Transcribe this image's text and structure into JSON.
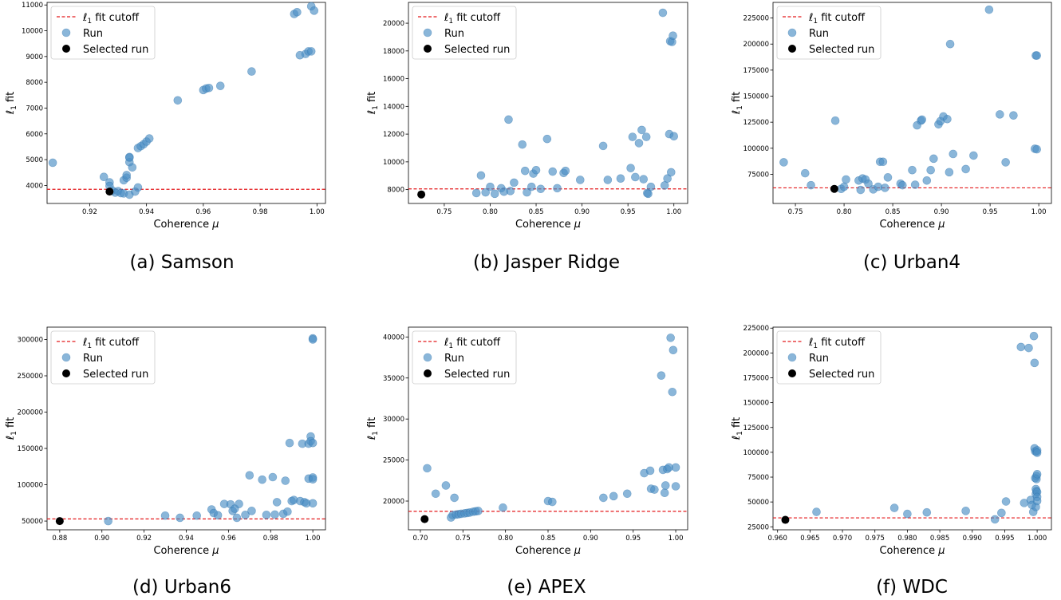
{
  "colors": {
    "run_point": "#4b8fc5",
    "run_point_stroke": "#2f74ad",
    "selected_point": "#000000",
    "cutoff_line": "#e41a1c",
    "axes": "#000000"
  },
  "legend_labels": {
    "cutoff_prefix": "ℓ",
    "cutoff_sub": "1",
    "cutoff_suffix": " fit cutoff",
    "run": "Run",
    "selected": "Selected run"
  },
  "chart_data": [
    {
      "type": "scatter",
      "caption": "(a) Samson",
      "xlabel_main": "Coherence ",
      "xlabel_mu": "μ",
      "ylabel_main": "ℓ",
      "ylabel_sub": "1",
      "ylabel_suffix": " fit",
      "xlim": [
        0.905,
        1.003
      ],
      "ylim": [
        3300,
        11100
      ],
      "xticks": [
        0.92,
        0.94,
        0.96,
        0.98,
        1.0
      ],
      "xtick_labels": [
        "0.92",
        "0.94",
        "0.96",
        "0.98",
        "1.00"
      ],
      "yticks": [
        4000,
        5000,
        6000,
        7000,
        8000,
        9000,
        10000,
        11000
      ],
      "ytick_labels": [
        "4000",
        "5000",
        "6000",
        "7000",
        "8000",
        "9000",
        "10000",
        "11000"
      ],
      "cutoff": 3850,
      "selected": [
        0.927,
        3760
      ],
      "runs": [
        [
          0.907,
          4880
        ],
        [
          0.925,
          4330
        ],
        [
          0.927,
          4120
        ],
        [
          0.927,
          3980
        ],
        [
          0.928,
          3800
        ],
        [
          0.929,
          3720
        ],
        [
          0.93,
          3780
        ],
        [
          0.931,
          3700
        ],
        [
          0.932,
          3690
        ],
        [
          0.932,
          4200
        ],
        [
          0.933,
          4300
        ],
        [
          0.933,
          4400
        ],
        [
          0.934,
          4900
        ],
        [
          0.934,
          5100
        ],
        [
          0.934,
          5080
        ],
        [
          0.935,
          4700
        ],
        [
          0.934,
          3640
        ],
        [
          0.936,
          3760
        ],
        [
          0.937,
          3920
        ],
        [
          0.937,
          5450
        ],
        [
          0.938,
          5520
        ],
        [
          0.939,
          5600
        ],
        [
          0.94,
          5700
        ],
        [
          0.941,
          5820
        ],
        [
          0.951,
          7300
        ],
        [
          0.96,
          7700
        ],
        [
          0.961,
          7760
        ],
        [
          0.962,
          7780
        ],
        [
          0.966,
          7860
        ],
        [
          0.977,
          8420
        ],
        [
          0.992,
          10650
        ],
        [
          0.993,
          10720
        ],
        [
          0.994,
          9050
        ],
        [
          0.996,
          9100
        ],
        [
          0.997,
          9200
        ],
        [
          0.998,
          9200
        ],
        [
          0.998,
          10950
        ],
        [
          0.999,
          10780
        ]
      ]
    },
    {
      "type": "scatter",
      "caption": "(b) Jasper Ridge",
      "xlabel_main": "Coherence ",
      "xlabel_mu": "μ",
      "ylabel_main": "ℓ",
      "ylabel_sub": "1",
      "ylabel_suffix": " fit",
      "xlim": [
        0.711,
        1.015
      ],
      "ylim": [
        7000,
        21500
      ],
      "xticks": [
        0.75,
        0.8,
        0.85,
        0.9,
        0.95,
        1.0
      ],
      "xtick_labels": [
        "0.75",
        "0.80",
        "0.85",
        "0.90",
        "0.95",
        "1.00"
      ],
      "yticks": [
        8000,
        10000,
        12000,
        14000,
        16000,
        18000,
        20000
      ],
      "ytick_labels": [
        "8000",
        "10000",
        "12000",
        "14000",
        "16000",
        "18000",
        "20000"
      ],
      "cutoff": 8050,
      "selected": [
        0.725,
        7650
      ],
      "runs": [
        [
          0.785,
          7750
        ],
        [
          0.79,
          9020
        ],
        [
          0.795,
          7800
        ],
        [
          0.8,
          8200
        ],
        [
          0.805,
          7700
        ],
        [
          0.812,
          8100
        ],
        [
          0.815,
          7850
        ],
        [
          0.82,
          13050
        ],
        [
          0.822,
          7900
        ],
        [
          0.826,
          8500
        ],
        [
          0.835,
          11250
        ],
        [
          0.838,
          9350
        ],
        [
          0.84,
          7800
        ],
        [
          0.845,
          8200
        ],
        [
          0.847,
          9150
        ],
        [
          0.85,
          9400
        ],
        [
          0.855,
          8050
        ],
        [
          0.862,
          11650
        ],
        [
          0.868,
          9300
        ],
        [
          0.873,
          8100
        ],
        [
          0.88,
          9200
        ],
        [
          0.882,
          9350
        ],
        [
          0.898,
          8700
        ],
        [
          0.923,
          11150
        ],
        [
          0.928,
          8700
        ],
        [
          0.942,
          8800
        ],
        [
          0.953,
          9550
        ],
        [
          0.955,
          11800
        ],
        [
          0.958,
          8900
        ],
        [
          0.962,
          11350
        ],
        [
          0.965,
          12300
        ],
        [
          0.967,
          8750
        ],
        [
          0.97,
          11800
        ],
        [
          0.971,
          7750
        ],
        [
          0.972,
          7700
        ],
        [
          0.975,
          8200
        ],
        [
          0.988,
          20750
        ],
        [
          0.99,
          8300
        ],
        [
          0.993,
          8800
        ],
        [
          0.995,
          12000
        ],
        [
          0.996,
          18700
        ],
        [
          0.997,
          9250
        ],
        [
          0.998,
          18650
        ],
        [
          0.999,
          19100
        ],
        [
          1.0,
          11850
        ]
      ]
    },
    {
      "type": "scatter",
      "caption": "(c) Urban4",
      "xlabel_main": "Coherence ",
      "xlabel_mu": "μ",
      "ylabel_main": "ℓ",
      "ylabel_sub": "1",
      "ylabel_suffix": " fit",
      "xlim": [
        0.727,
        1.013
      ],
      "ylim": [
        47000,
        240000
      ],
      "xticks": [
        0.75,
        0.8,
        0.85,
        0.9,
        0.95,
        1.0
      ],
      "xtick_labels": [
        "0.75",
        "0.80",
        "0.85",
        "0.90",
        "0.95",
        "1.00"
      ],
      "yticks": [
        75000,
        100000,
        125000,
        150000,
        175000,
        200000,
        225000
      ],
      "ytick_labels": [
        "75000",
        "100000",
        "125000",
        "150000",
        "175000",
        "200000",
        "225000"
      ],
      "cutoff": 62000,
      "selected": [
        0.79,
        61000
      ],
      "runs": [
        [
          0.738,
          86500
        ],
        [
          0.76,
          76000
        ],
        [
          0.766,
          64500
        ],
        [
          0.791,
          126500
        ],
        [
          0.797,
          61000
        ],
        [
          0.8,
          63000
        ],
        [
          0.802,
          70000
        ],
        [
          0.815,
          69000
        ],
        [
          0.817,
          60000
        ],
        [
          0.819,
          71000
        ],
        [
          0.822,
          70000
        ],
        [
          0.825,
          66000
        ],
        [
          0.83,
          60500
        ],
        [
          0.835,
          63000
        ],
        [
          0.837,
          87000
        ],
        [
          0.84,
          87000
        ],
        [
          0.842,
          62000
        ],
        [
          0.845,
          72000
        ],
        [
          0.858,
          66000
        ],
        [
          0.86,
          64500
        ],
        [
          0.87,
          79000
        ],
        [
          0.873,
          65000
        ],
        [
          0.875,
          122000
        ],
        [
          0.879,
          126500
        ],
        [
          0.88,
          127500
        ],
        [
          0.885,
          69000
        ],
        [
          0.889,
          79000
        ],
        [
          0.892,
          90000
        ],
        [
          0.897,
          123000
        ],
        [
          0.899,
          126000
        ],
        [
          0.902,
          130500
        ],
        [
          0.906,
          128000
        ],
        [
          0.908,
          77000
        ],
        [
          0.909,
          200000
        ],
        [
          0.912,
          94500
        ],
        [
          0.925,
          80000
        ],
        [
          0.933,
          93000
        ],
        [
          0.949,
          233000
        ],
        [
          0.96,
          132500
        ],
        [
          0.966,
          86500
        ],
        [
          0.974,
          131500
        ],
        [
          0.996,
          99500
        ],
        [
          0.997,
          189000
        ],
        [
          0.998,
          189000
        ],
        [
          0.998,
          99000
        ]
      ]
    },
    {
      "type": "scatter",
      "caption": "(d) Urban6",
      "xlabel_main": "Coherence ",
      "xlabel_mu": "μ",
      "ylabel_main": "ℓ",
      "ylabel_sub": "1",
      "ylabel_suffix": " fit",
      "xlim": [
        0.874,
        1.006
      ],
      "ylim": [
        38000,
        317000
      ],
      "xticks": [
        0.88,
        0.9,
        0.92,
        0.94,
        0.96,
        0.98,
        1.0
      ],
      "xtick_labels": [
        "0.88",
        "0.90",
        "0.92",
        "0.94",
        "0.96",
        "0.98",
        "1.00"
      ],
      "yticks": [
        50000,
        100000,
        150000,
        200000,
        250000,
        300000
      ],
      "ytick_labels": [
        "50000",
        "100000",
        "150000",
        "200000",
        "250000",
        "300000"
      ],
      "cutoff": 53000,
      "selected": [
        0.88,
        50000
      ],
      "runs": [
        [
          0.903,
          50000
        ],
        [
          0.93,
          57500
        ],
        [
          0.937,
          54500
        ],
        [
          0.945,
          57500
        ],
        [
          0.952,
          66000
        ],
        [
          0.953,
          61000
        ],
        [
          0.955,
          58000
        ],
        [
          0.958,
          73500
        ],
        [
          0.961,
          73000
        ],
        [
          0.962,
          64000
        ],
        [
          0.963,
          67000
        ],
        [
          0.964,
          54500
        ],
        [
          0.965,
          73500
        ],
        [
          0.968,
          58500
        ],
        [
          0.97,
          113000
        ],
        [
          0.971,
          64000
        ],
        [
          0.976,
          107000
        ],
        [
          0.978,
          58500
        ],
        [
          0.981,
          110500
        ],
        [
          0.982,
          59000
        ],
        [
          0.983,
          76000
        ],
        [
          0.986,
          60000
        ],
        [
          0.987,
          105500
        ],
        [
          0.988,
          63000
        ],
        [
          0.989,
          157500
        ],
        [
          0.99,
          77500
        ],
        [
          0.991,
          79000
        ],
        [
          0.994,
          77500
        ],
        [
          0.995,
          156500
        ],
        [
          0.996,
          76000
        ],
        [
          0.997,
          74500
        ],
        [
          0.998,
          108500
        ],
        [
          0.998,
          156500
        ],
        [
          0.999,
          166500
        ],
        [
          0.999,
          160000
        ],
        [
          1.0,
          157500
        ],
        [
          1.0,
          301500
        ],
        [
          1.0,
          300000
        ],
        [
          1.0,
          110000
        ],
        [
          1.0,
          107500
        ],
        [
          1.0,
          74500
        ]
      ]
    },
    {
      "type": "scatter",
      "caption": "(e) APEX",
      "xlabel_main": "Coherence ",
      "xlabel_mu": "μ",
      "ylabel_main": "ℓ",
      "ylabel_sub": "1",
      "ylabel_suffix": " fit",
      "xlim": [
        0.686,
        1.014
      ],
      "ylim": [
        16500,
        41200
      ],
      "xticks": [
        0.7,
        0.75,
        0.8,
        0.85,
        0.9,
        0.95,
        1.0
      ],
      "xtick_labels": [
        "0.70",
        "0.75",
        "0.80",
        "0.85",
        "0.90",
        "0.95",
        "1.00"
      ],
      "yticks": [
        20000,
        25000,
        30000,
        35000,
        40000
      ],
      "ytick_labels": [
        "20000",
        "25000",
        "30000",
        "35000",
        "40000"
      ],
      "cutoff": 18750,
      "selected": [
        0.705,
        17800
      ],
      "runs": [
        [
          0.708,
          24000
        ],
        [
          0.718,
          20900
        ],
        [
          0.73,
          21900
        ],
        [
          0.736,
          18000
        ],
        [
          0.738,
          18300
        ],
        [
          0.74,
          20400
        ],
        [
          0.742,
          18350
        ],
        [
          0.745,
          18400
        ],
        [
          0.748,
          18450
        ],
        [
          0.752,
          18500
        ],
        [
          0.755,
          18550
        ],
        [
          0.758,
          18600
        ],
        [
          0.762,
          18700
        ],
        [
          0.765,
          18750
        ],
        [
          0.768,
          18800
        ],
        [
          0.797,
          19200
        ],
        [
          0.85,
          20000
        ],
        [
          0.855,
          19900
        ],
        [
          0.915,
          20400
        ],
        [
          0.927,
          20600
        ],
        [
          0.943,
          20900
        ],
        [
          0.963,
          23400
        ],
        [
          0.97,
          23700
        ],
        [
          0.971,
          21500
        ],
        [
          0.975,
          21400
        ],
        [
          0.983,
          35300
        ],
        [
          0.985,
          23800
        ],
        [
          0.987,
          21000
        ],
        [
          0.988,
          21900
        ],
        [
          0.99,
          23900
        ],
        [
          0.992,
          24100
        ],
        [
          0.994,
          39900
        ],
        [
          0.996,
          33300
        ],
        [
          0.997,
          38400
        ],
        [
          1.0,
          24100
        ],
        [
          1.0,
          21800
        ]
      ]
    },
    {
      "type": "scatter",
      "caption": "(f) WDC",
      "xlabel_main": "Coherence ",
      "xlabel_mu": "μ",
      "ylabel_main": "ℓ",
      "ylabel_sub": "1",
      "ylabel_suffix": " fit",
      "xlim": [
        0.9593,
        1.0022
      ],
      "ylim": [
        22000,
        226000
      ],
      "xticks": [
        0.96,
        0.965,
        0.97,
        0.975,
        0.98,
        0.985,
        0.99,
        0.995,
        1.0
      ],
      "xtick_labels": [
        "0.960",
        "0.965",
        "0.970",
        "0.975",
        "0.980",
        "0.985",
        "0.990",
        "0.995",
        "1.000"
      ],
      "yticks": [
        25000,
        50000,
        75000,
        100000,
        125000,
        150000,
        175000,
        200000,
        225000
      ],
      "ytick_labels": [
        "25000",
        "50000",
        "75000",
        "100000",
        "125000",
        "150000",
        "175000",
        "200000",
        "225000"
      ],
      "cutoff": 34000,
      "selected": [
        0.9612,
        32000
      ],
      "runs": [
        [
          0.966,
          40000
        ],
        [
          0.978,
          44000
        ],
        [
          0.98,
          38000
        ],
        [
          0.983,
          39500
        ],
        [
          0.989,
          41000
        ],
        [
          0.9935,
          32500
        ],
        [
          0.9945,
          39000
        ],
        [
          0.9952,
          50500
        ],
        [
          0.9975,
          206000
        ],
        [
          0.998,
          49000
        ],
        [
          0.9987,
          205000
        ],
        [
          0.999,
          52000
        ],
        [
          0.9992,
          47000
        ],
        [
          0.9994,
          40000
        ],
        [
          0.9995,
          217000
        ],
        [
          0.9996,
          190000
        ],
        [
          0.9996,
          104000
        ],
        [
          0.9997,
          101000
        ],
        [
          0.9997,
          74000
        ],
        [
          0.9998,
          63000
        ],
        [
          0.9998,
          58000
        ],
        [
          0.9998,
          45000
        ],
        [
          0.9999,
          100500
        ],
        [
          0.9999,
          76000
        ],
        [
          0.9999,
          73000
        ],
        [
          0.9999,
          61000
        ],
        [
          1.0,
          102000
        ],
        [
          1.0,
          99500
        ],
        [
          1.0,
          78000
        ],
        [
          1.0,
          60000
        ],
        [
          1.0,
          55000
        ],
        [
          1.0,
          51000
        ]
      ]
    }
  ]
}
